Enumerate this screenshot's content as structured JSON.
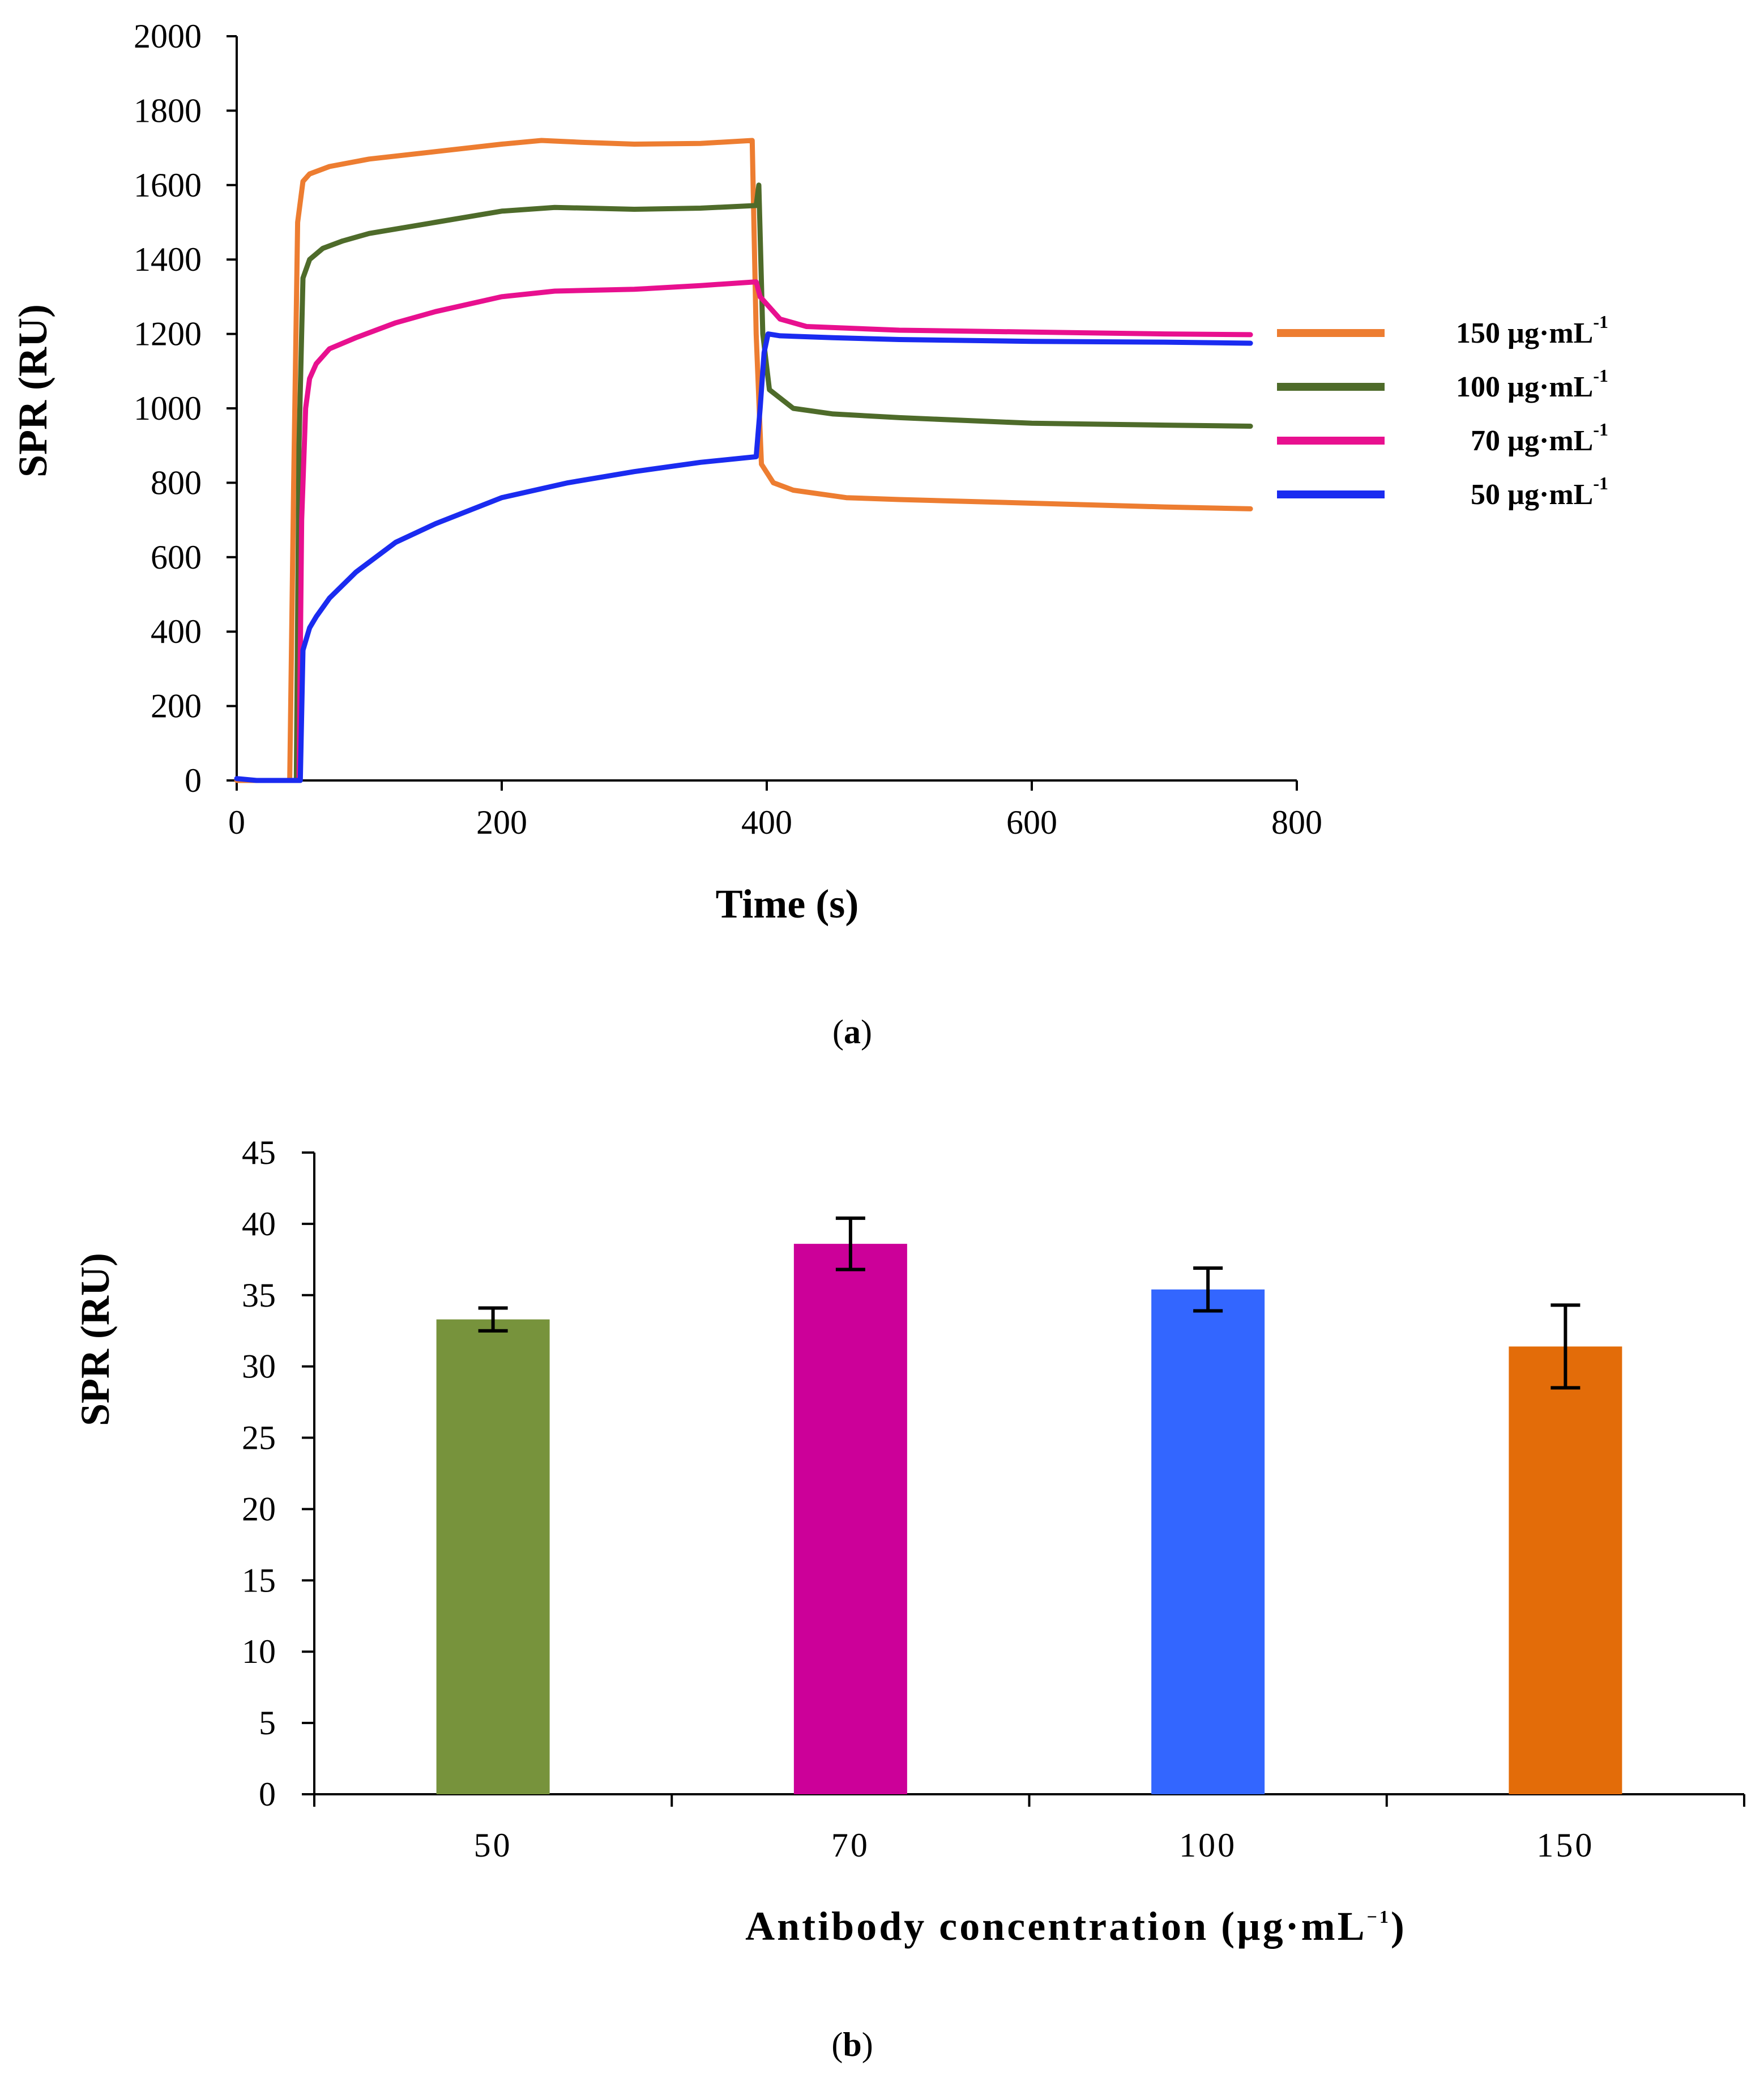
{
  "chart_data": [
    {
      "id": "a",
      "type": "line",
      "caption": "a",
      "xlabel": "Time (s)",
      "ylabel": "SPR (RU)",
      "xlim": [
        0,
        800
      ],
      "ylim": [
        0,
        2000
      ],
      "xticks": [
        0,
        200,
        400,
        600,
        800
      ],
      "yticks": [
        0,
        200,
        400,
        600,
        800,
        1000,
        1200,
        1400,
        1600,
        1800,
        2000
      ],
      "grid": false,
      "legend_position": "right",
      "series": [
        {
          "name": "150 µg·mL",
          "label_main": "150 µg·mL",
          "label_sup": "-1",
          "color": "#ED7D31",
          "points": [
            [
              0,
              0
            ],
            [
              15,
              0
            ],
            [
              35,
              0
            ],
            [
              40,
              0
            ],
            [
              43,
              800
            ],
            [
              46,
              1500
            ],
            [
              50,
              1610
            ],
            [
              55,
              1630
            ],
            [
              70,
              1650
            ],
            [
              100,
              1670
            ],
            [
              150,
              1690
            ],
            [
              200,
              1710
            ],
            [
              230,
              1720
            ],
            [
              260,
              1715
            ],
            [
              300,
              1710
            ],
            [
              350,
              1712
            ],
            [
              389,
              1720
            ],
            [
              392,
              1200
            ],
            [
              396,
              850
            ],
            [
              405,
              800
            ],
            [
              420,
              780
            ],
            [
              460,
              760
            ],
            [
              500,
              755
            ],
            [
              600,
              745
            ],
            [
              700,
              735
            ],
            [
              765,
              730
            ]
          ]
        },
        {
          "name": "100 µg·mL",
          "label_main": "100 µg·mL",
          "label_sup": "-1",
          "color": "#4E6B2A",
          "points": [
            [
              40,
              0
            ],
            [
              45,
              0
            ],
            [
              47,
              900
            ],
            [
              50,
              1350
            ],
            [
              55,
              1400
            ],
            [
              65,
              1430
            ],
            [
              80,
              1450
            ],
            [
              100,
              1470
            ],
            [
              150,
              1500
            ],
            [
              200,
              1530
            ],
            [
              240,
              1540
            ],
            [
              300,
              1535
            ],
            [
              350,
              1538
            ],
            [
              392,
              1545
            ],
            [
              394,
              1600
            ],
            [
              397,
              1200
            ],
            [
              402,
              1050
            ],
            [
              420,
              1000
            ],
            [
              450,
              985
            ],
            [
              500,
              975
            ],
            [
              600,
              960
            ],
            [
              700,
              955
            ],
            [
              765,
              952
            ]
          ]
        },
        {
          "name": "70 µg·mL",
          "label_main": "70 µg·mL",
          "label_sup": "-1",
          "color": "#E8108F",
          "points": [
            [
              43,
              0
            ],
            [
              47,
              0
            ],
            [
              49,
              700
            ],
            [
              52,
              1000
            ],
            [
              55,
              1080
            ],
            [
              60,
              1120
            ],
            [
              70,
              1160
            ],
            [
              90,
              1190
            ],
            [
              120,
              1230
            ],
            [
              150,
              1260
            ],
            [
              200,
              1300
            ],
            [
              240,
              1315
            ],
            [
              300,
              1320
            ],
            [
              350,
              1330
            ],
            [
              392,
              1340
            ],
            [
              395,
              1300
            ],
            [
              400,
              1280
            ],
            [
              410,
              1240
            ],
            [
              430,
              1220
            ],
            [
              500,
              1210
            ],
            [
              600,
              1205
            ],
            [
              700,
              1200
            ],
            [
              765,
              1198
            ]
          ]
        },
        {
          "name": "50 µg·mL",
          "label_main": "50 µg·mL",
          "label_sup": "-1",
          "color": "#1A2BF0",
          "points": [
            [
              0,
              5
            ],
            [
              15,
              0
            ],
            [
              45,
              0
            ],
            [
              48,
              0
            ],
            [
              50,
              350
            ],
            [
              55,
              410
            ],
            [
              60,
              440
            ],
            [
              70,
              490
            ],
            [
              90,
              560
            ],
            [
              120,
              640
            ],
            [
              150,
              690
            ],
            [
              200,
              760
            ],
            [
              250,
              800
            ],
            [
              300,
              830
            ],
            [
              350,
              855
            ],
            [
              392,
              870
            ],
            [
              395,
              1000
            ],
            [
              398,
              1150
            ],
            [
              401,
              1200
            ],
            [
              410,
              1195
            ],
            [
              450,
              1190
            ],
            [
              500,
              1185
            ],
            [
              600,
              1180
            ],
            [
              700,
              1178
            ],
            [
              765,
              1175
            ]
          ]
        }
      ]
    },
    {
      "id": "b",
      "type": "bar",
      "caption": "b",
      "xlabel_main": "Antibody concentration (µg·mL",
      "xlabel_sup": "−1",
      "xlabel_close": ")",
      "ylabel": "SPR (RU)",
      "ylim": [
        0,
        45
      ],
      "yticks": [
        0,
        5,
        10,
        15,
        20,
        25,
        30,
        35,
        40,
        45
      ],
      "grid": false,
      "categories": [
        "50",
        "70",
        "100",
        "150"
      ],
      "values": [
        33.3,
        38.6,
        35.4,
        31.4
      ],
      "errors": [
        0.8,
        1.8,
        1.5,
        2.9
      ],
      "colors": [
        "#77933C",
        "#CC0099",
        "#3366FF",
        "#E36C09"
      ]
    }
  ]
}
